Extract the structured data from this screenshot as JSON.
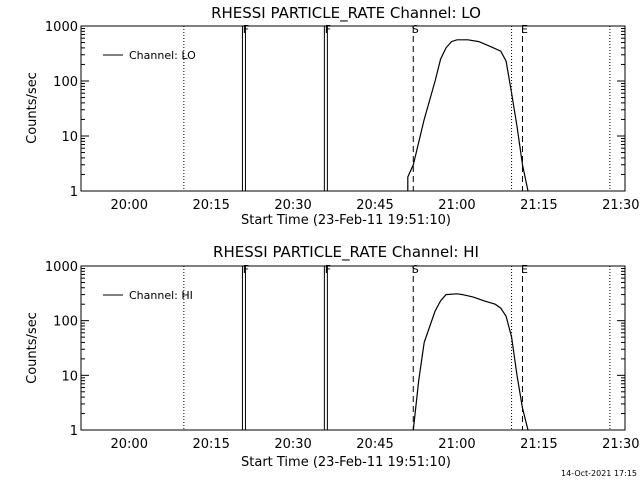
{
  "footer": {
    "timestamp": "14-Oct-2021 17:15"
  },
  "chart_data": [
    {
      "type": "line",
      "title": "RHESSI PARTICLE_RATE Channel: LO",
      "xlabel": "Start Time (23-Feb-11 19:51:10)",
      "ylabel": "Counts/sec",
      "yscale": "log",
      "ylim": [
        1,
        1000
      ],
      "xlim_minutes_after_start": [
        0,
        99.6
      ],
      "xticks": [
        "20:00",
        "20:15",
        "20:30",
        "20:45",
        "21:00",
        "21:15",
        "21:30"
      ],
      "yticks": [
        "1",
        "10",
        "100",
        "1000"
      ],
      "legend": {
        "position": "top-left",
        "entries": [
          "Channel: LO"
        ]
      },
      "markers": [
        {
          "label": "F",
          "time": "20:21",
          "style": "double-solid"
        },
        {
          "label": "F",
          "time": "20:36",
          "style": "double-solid"
        },
        {
          "label": "S",
          "time": "20:52",
          "style": "dashed"
        },
        {
          "label": "E",
          "time": "21:12",
          "style": "dashed"
        }
      ],
      "dotted_lines": [
        "20:10",
        "21:10",
        "21:28"
      ],
      "series": [
        {
          "name": "Channel: LO",
          "x": [
            "20:51",
            "20:51",
            "20:52",
            "20:54",
            "20:56",
            "20:57",
            "20:58",
            "20:59",
            "21:00",
            "21:02",
            "21:04",
            "21:06",
            "21:08",
            "21:09",
            "21:10",
            "21:11",
            "21:12",
            "21:13"
          ],
          "y": [
            1,
            1.8,
            3,
            20,
            100,
            250,
            400,
            520,
            560,
            560,
            520,
            430,
            350,
            230,
            60,
            15,
            3,
            1
          ]
        }
      ]
    },
    {
      "type": "line",
      "title": "RHESSI PARTICLE_RATE Channel: HI",
      "xlabel": "Start Time (23-Feb-11 19:51:10)",
      "ylabel": "Counts/sec",
      "yscale": "log",
      "ylim": [
        1,
        1000
      ],
      "xlim_minutes_after_start": [
        0,
        99.6
      ],
      "xticks": [
        "20:00",
        "20:15",
        "20:30",
        "20:45",
        "21:00",
        "21:15",
        "21:30"
      ],
      "yticks": [
        "1",
        "10",
        "100",
        "1000"
      ],
      "legend": {
        "position": "top-left",
        "entries": [
          "Channel: HI"
        ]
      },
      "markers": [
        {
          "label": "F",
          "time": "20:21",
          "style": "double-solid"
        },
        {
          "label": "F",
          "time": "20:36",
          "style": "double-solid"
        },
        {
          "label": "S",
          "time": "20:52",
          "style": "dashed"
        },
        {
          "label": "E",
          "time": "21:12",
          "style": "dashed"
        }
      ],
      "dotted_lines": [
        "20:10",
        "21:10",
        "21:28"
      ],
      "series": [
        {
          "name": "Channel: HI",
          "x": [
            "20:52",
            "20:53",
            "20:54",
            "20:56",
            "20:57",
            "20:58",
            "21:00",
            "21:01",
            "21:03",
            "21:05",
            "21:07",
            "21:08",
            "21:09",
            "21:10",
            "21:11",
            "21:12",
            "21:13"
          ],
          "y": [
            1,
            8,
            40,
            150,
            230,
            300,
            310,
            300,
            270,
            230,
            200,
            170,
            120,
            50,
            10,
            2.5,
            1
          ]
        }
      ]
    }
  ]
}
